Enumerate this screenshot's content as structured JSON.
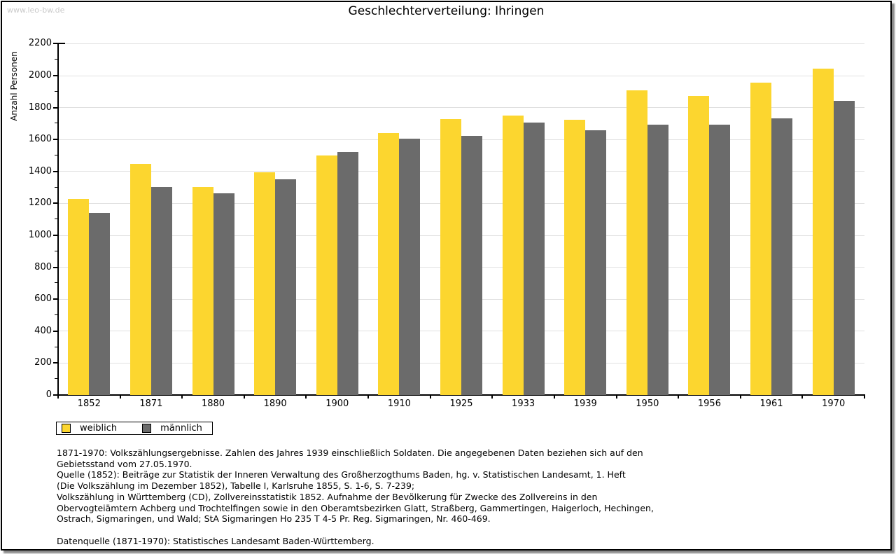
{
  "watermark": "www.leo-bw.de",
  "title": "Geschlechterverteilung: Ihringen",
  "chart_data": {
    "type": "bar",
    "title": "Geschlechterverteilung: Ihringen",
    "xlabel": "",
    "ylabel": "Anzahl Personen",
    "ylim": [
      0,
      2200
    ],
    "ytick_interval": 200,
    "minor_tick_interval": 100,
    "grid": true,
    "legend_position": "bottom-left",
    "categories": [
      "1852",
      "1871",
      "1880",
      "1890",
      "1900",
      "1910",
      "1925",
      "1933",
      "1939",
      "1950",
      "1956",
      "1961",
      "1970"
    ],
    "series": [
      {
        "name": "weiblich",
        "color": "#FCD62F",
        "values": [
          1230,
          1448,
          1303,
          1396,
          1500,
          1639,
          1727,
          1749,
          1724,
          1906,
          1873,
          1954,
          2042
        ]
      },
      {
        "name": "männlich",
        "color": "#6B6B6B",
        "values": [
          1142,
          1303,
          1262,
          1351,
          1522,
          1606,
          1624,
          1706,
          1660,
          1694,
          1694,
          1733,
          1844
        ]
      }
    ]
  },
  "legend": {
    "items": [
      {
        "label": "weiblich",
        "color": "#FCD62F"
      },
      {
        "label": "männlich",
        "color": "#6B6B6B"
      }
    ]
  },
  "colors": {
    "gridline": "#e0e0e0",
    "axis": "#000000",
    "watermark": "#cacaca"
  },
  "footnote_lines": [
    "1871-1970: Volkszählungsergebnisse. Zahlen des Jahres 1939 einschließlich Soldaten. Die angegebenen Daten beziehen sich auf den",
    "Gebietsstand vom 27.05.1970.",
    "Quelle (1852): Beiträge zur Statistik der Inneren Verwaltung des Großherzogthums Baden, hg. v. Statistischen Landesamt, 1. Heft",
    "(Die Volkszählung im Dezember 1852), Tabelle I, Karlsruhe 1855, S. 1-6, S. 7-239;",
    "Volkszählung in Württemberg (CD), Zollvereinsstatistik 1852. Aufnahme der Bevölkerung für Zwecke des Zollvereins in den",
    "Obervogteiämtern Achberg und Trochtelfingen sowie in den Oberamtsbezirken Glatt, Straßberg, Gammertingen, Haigerloch, Hechingen,",
    "Ostrach, Sigmaringen, und Wald; StA Sigmaringen Ho 235 T 4-5 Pr. Reg. Sigmaringen, Nr. 460-469.",
    "",
    "Datenquelle (1871-1970): Statistisches Landesamt Baden-Württemberg."
  ]
}
